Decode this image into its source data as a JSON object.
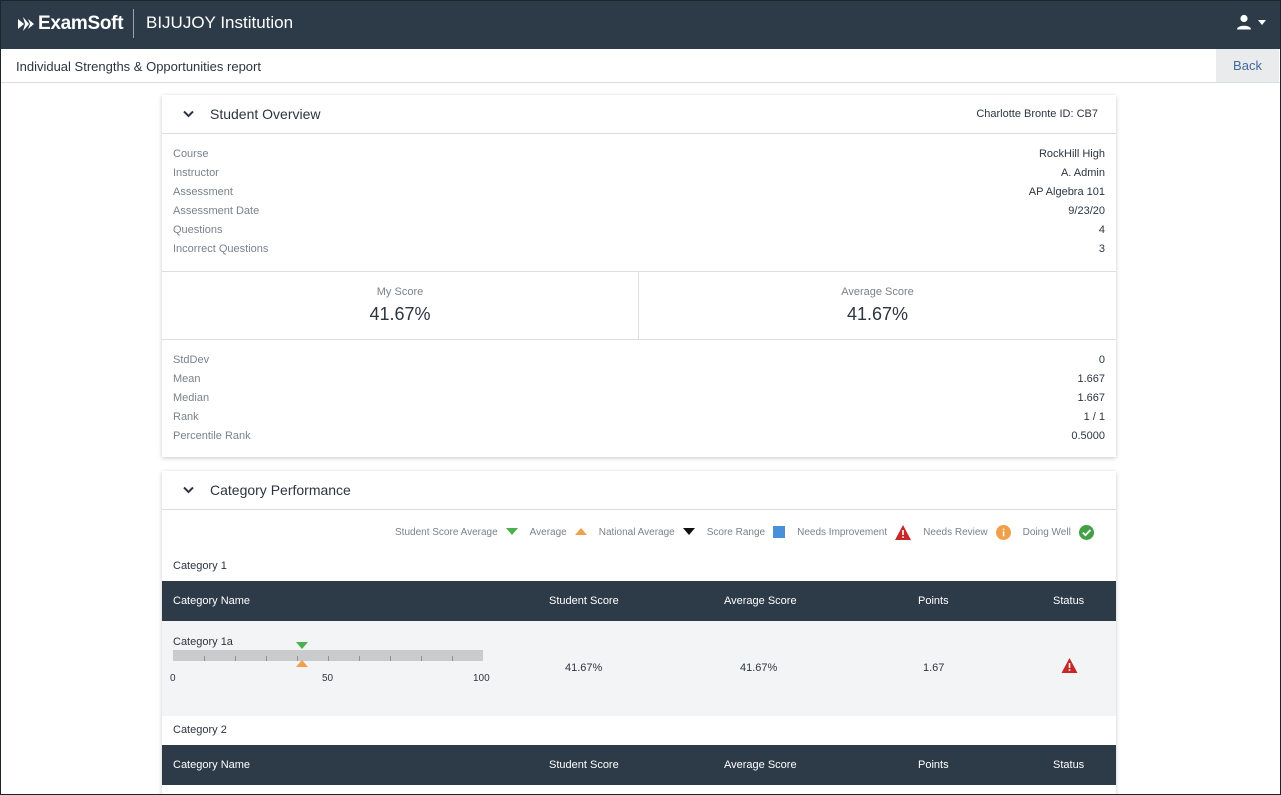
{
  "app": {
    "logo_text": "ExamSoft",
    "logo_tm": "·",
    "institution": "BIJUJOY Institution"
  },
  "subheader": {
    "report_title": "Individual Strengths & Opportunities report",
    "back_label": "Back"
  },
  "overview": {
    "title": "Student Overview",
    "student_id": "Charlotte Bronte ID: CB7",
    "details": [
      {
        "label": "Course",
        "value": "RockHill High"
      },
      {
        "label": "Instructor",
        "value": "A. Admin"
      },
      {
        "label": "Assessment",
        "value": "AP Algebra 101"
      },
      {
        "label": "Assessment Date",
        "value": "9/23/20"
      },
      {
        "label": "Questions",
        "value": "4"
      },
      {
        "label": "Incorrect Questions",
        "value": "3"
      }
    ],
    "my_score_label": "My Score",
    "my_score_value": "41.67%",
    "avg_score_label": "Average Score",
    "avg_score_value": "41.67%",
    "stats": [
      {
        "label": "StdDev",
        "value": "0"
      },
      {
        "label": "Mean",
        "value": "1.667"
      },
      {
        "label": "Median",
        "value": "1.667"
      },
      {
        "label": "Rank",
        "value": "1 / 1"
      },
      {
        "label": "Percentile Rank",
        "value": "0.5000"
      }
    ]
  },
  "category_performance": {
    "title": "Category Performance",
    "legend": [
      {
        "label": "Student Score Average",
        "icon": "green-triangle-down-icon",
        "color": "#4caf50"
      },
      {
        "label": "Average",
        "icon": "orange-triangle-up-icon",
        "color": "#f0a04b"
      },
      {
        "label": "National Average",
        "icon": "black-triangle-down-icon",
        "color": "#111111"
      },
      {
        "label": "Score Range",
        "icon": "blue-square-icon",
        "color": "#4a90d9"
      },
      {
        "label": "Needs Improvement",
        "icon": "warning-icon",
        "color": "#c62828"
      },
      {
        "label": "Needs Review",
        "icon": "info-icon",
        "color": "#f0a04b"
      },
      {
        "label": "Doing Well",
        "icon": "check-circle-icon",
        "color": "#43a047"
      }
    ],
    "columns": {
      "name": "Category Name",
      "student_score": "Student Score",
      "average_score": "Average Score",
      "points": "Points",
      "status": "Status"
    },
    "categories": [
      {
        "label": "Category 1",
        "rows": [
          {
            "name": "Category 1a",
            "student_score": "41.67%",
            "average_score": "41.67%",
            "points": "1.67",
            "status": "Needs Improvement",
            "student_pct": 41.67,
            "average_pct": 41.67,
            "axis": {
              "min": "0",
              "mid": "50",
              "max": "100"
            }
          }
        ]
      },
      {
        "label": "Category 2",
        "rows": []
      }
    ]
  }
}
